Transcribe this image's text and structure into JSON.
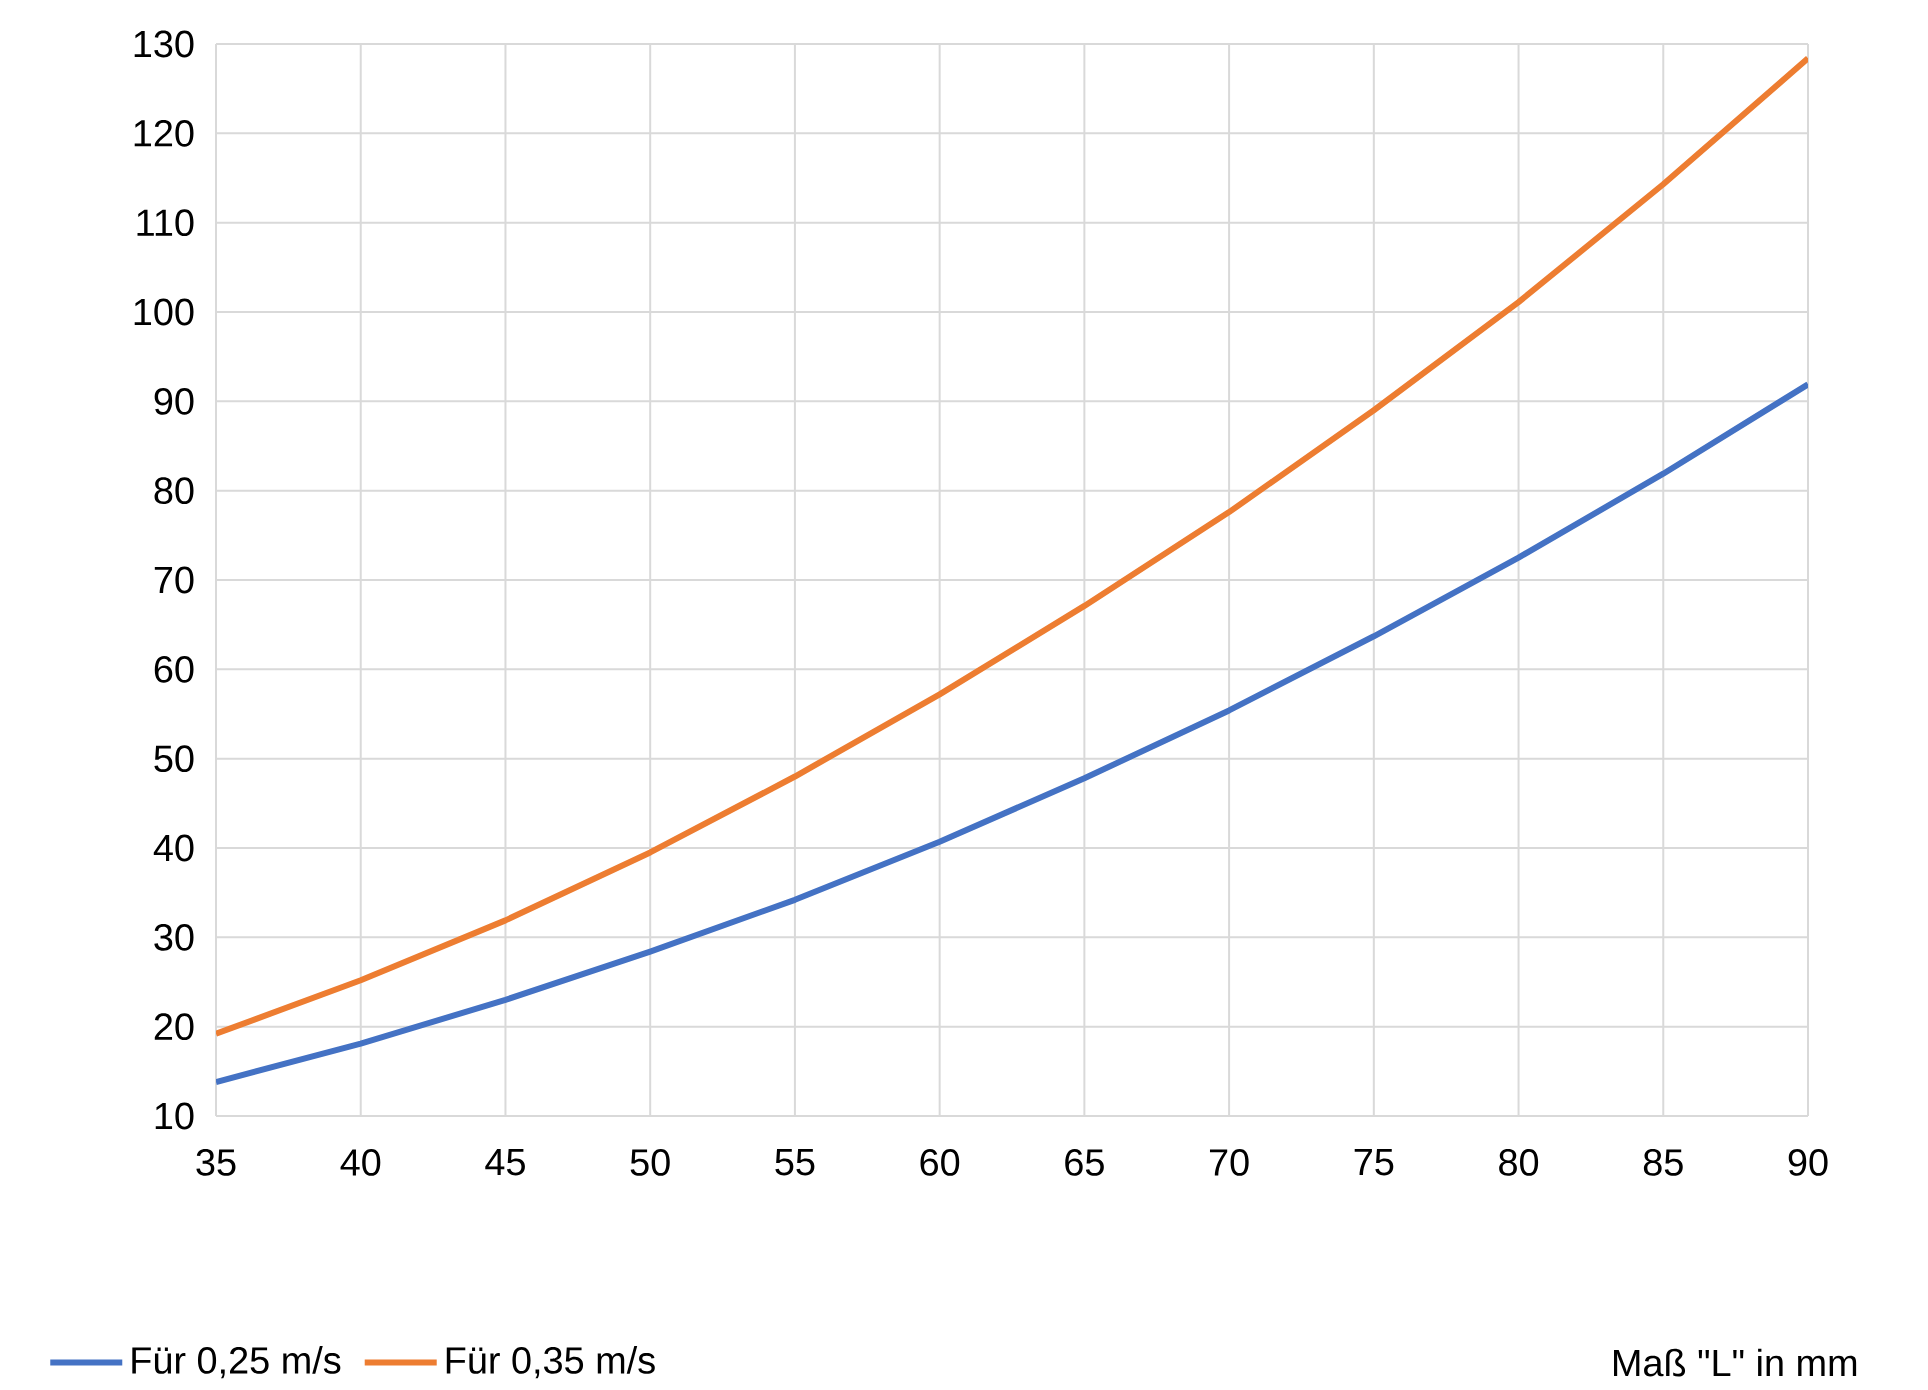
{
  "chart_data": {
    "type": "line",
    "xlabel": "Maß \"L\" in mm",
    "x": [
      35,
      40,
      45,
      50,
      55,
      60,
      65,
      70,
      75,
      80,
      85,
      90
    ],
    "series": [
      {
        "name": "Für 0,25 m/s",
        "color": "#4472c4",
        "values": [
          13.8,
          18.1,
          23,
          28.4,
          34.2,
          40.7,
          47.8,
          55.4,
          63.7,
          72.5,
          81.9,
          91.9
        ]
      },
      {
        "name": "Für 0,35 m/s",
        "color": "#ed7d31",
        "values": [
          19.2,
          25.2,
          31.9,
          39.5,
          48,
          57.2,
          67.1,
          77.6,
          89,
          101.1,
          114.3,
          128.4
        ]
      }
    ],
    "xlim": [
      35,
      90
    ],
    "ylim": [
      10,
      130
    ],
    "xticks": [
      35,
      40,
      45,
      50,
      55,
      60,
      65,
      70,
      75,
      80,
      85,
      90
    ],
    "yticks": [
      10,
      20,
      30,
      40,
      50,
      60,
      70,
      80,
      90,
      100,
      110,
      120,
      130
    ],
    "grid": true,
    "legend": "bottom",
    "marker": "none",
    "line_style": "solid"
  }
}
